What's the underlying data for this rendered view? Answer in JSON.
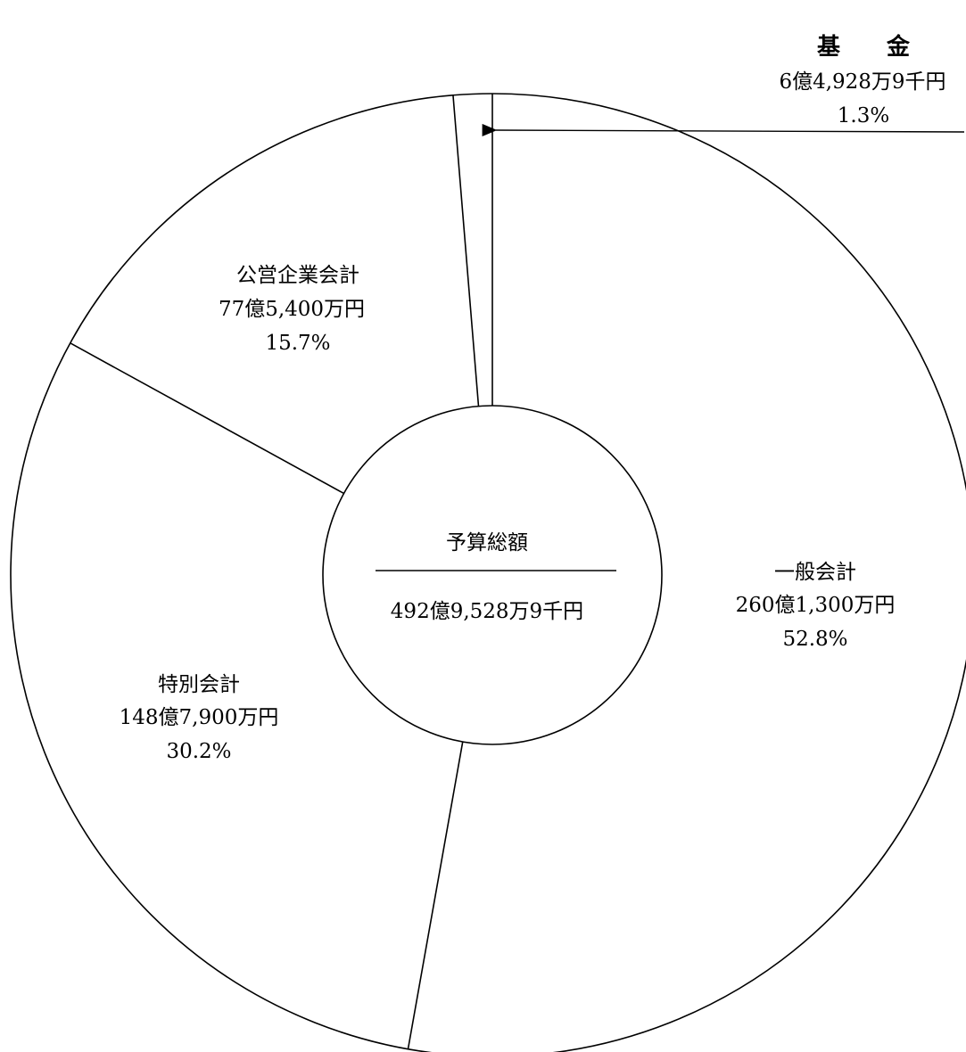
{
  "chart_data": {
    "type": "pie",
    "style": "donut",
    "line_color": "#000000",
    "fill_color": "#ffffff",
    "center": {
      "title": "予算総額",
      "value": "492億9,528万9千円"
    },
    "slices": [
      {
        "name": "一般会計",
        "amount": "260億1,300万円",
        "percent": 52.8
      },
      {
        "name": "特別会計",
        "amount": "148億7,900万円",
        "percent": 30.2
      },
      {
        "name": "公営企業会計",
        "amount": "77億5,400万円",
        "percent": 15.7
      },
      {
        "name": "基　　金",
        "amount": "6億4,928万9千円",
        "percent": 1.3
      }
    ],
    "percent_labels": [
      "52.8%",
      "30.2%",
      "15.7%",
      "1.3%"
    ]
  }
}
